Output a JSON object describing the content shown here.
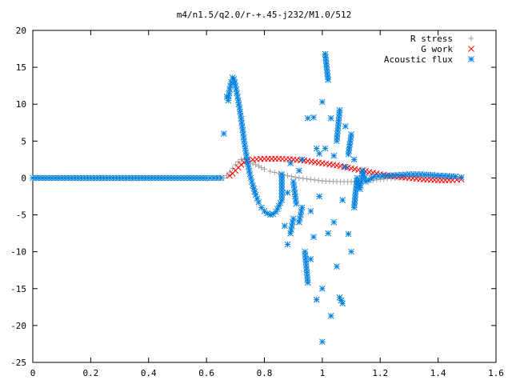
{
  "chart_data": {
    "type": "scatter",
    "title": "m4/n1.5/q2.0/r-+.45-j232/M1.0/512",
    "xlabel": "",
    "ylabel": "",
    "xlim": [
      0,
      1.6
    ],
    "ylim": [
      -25,
      20
    ],
    "x_ticks": [
      "0",
      "0.2",
      "0.4",
      "0.6",
      "0.8",
      "1",
      "1.2",
      "1.4",
      "1.6"
    ],
    "y_ticks": [
      "20",
      "15",
      "10",
      "5",
      "0",
      "-5",
      "-10",
      "-15",
      "-20",
      "-25"
    ],
    "grid": false,
    "legend_position": "top-right",
    "series": [
      {
        "name": "R stress",
        "color": "#a0a0a0",
        "marker": "plus",
        "points": [
          [
            0.0,
            0
          ],
          [
            0.1,
            0
          ],
          [
            0.2,
            0
          ],
          [
            0.3,
            0
          ],
          [
            0.4,
            0
          ],
          [
            0.5,
            0
          ],
          [
            0.6,
            0
          ],
          [
            0.66,
            0
          ],
          [
            0.67,
            0.3
          ],
          [
            0.68,
            0.8
          ],
          [
            0.69,
            1.3
          ],
          [
            0.7,
            1.8
          ],
          [
            0.71,
            2.2
          ],
          [
            0.72,
            2.5
          ],
          [
            0.73,
            2.6
          ],
          [
            0.74,
            2.5
          ],
          [
            0.75,
            2.3
          ],
          [
            0.76,
            2.0
          ],
          [
            0.78,
            1.6
          ],
          [
            0.8,
            1.2
          ],
          [
            0.82,
            0.9
          ],
          [
            0.85,
            0.6
          ],
          [
            0.88,
            0.3
          ],
          [
            0.92,
            0.0
          ],
          [
            0.96,
            -0.2
          ],
          [
            1.0,
            -0.4
          ],
          [
            1.05,
            -0.5
          ],
          [
            1.1,
            -0.5
          ],
          [
            1.15,
            -0.4
          ],
          [
            1.2,
            -0.2
          ],
          [
            1.25,
            0.0
          ],
          [
            1.3,
            0.2
          ],
          [
            1.35,
            0.3
          ],
          [
            1.4,
            0.3
          ],
          [
            1.45,
            0.2
          ],
          [
            1.48,
            0.1
          ]
        ]
      },
      {
        "name": "G work",
        "color": "#ff0000",
        "marker": "cross",
        "points": [
          [
            0.68,
            0.3
          ],
          [
            0.69,
            0.6
          ],
          [
            0.7,
            1.0
          ],
          [
            0.71,
            1.4
          ],
          [
            0.72,
            1.8
          ],
          [
            0.73,
            2.1
          ],
          [
            0.74,
            2.3
          ],
          [
            0.76,
            2.5
          ],
          [
            0.8,
            2.6
          ],
          [
            0.85,
            2.6
          ],
          [
            0.9,
            2.5
          ],
          [
            0.95,
            2.3
          ],
          [
            1.0,
            2.0
          ],
          [
            1.05,
            1.7
          ],
          [
            1.1,
            1.3
          ],
          [
            1.15,
            0.9
          ],
          [
            1.2,
            0.5
          ],
          [
            1.25,
            0.2
          ],
          [
            1.3,
            0.0
          ],
          [
            1.35,
            -0.2
          ],
          [
            1.4,
            -0.3
          ],
          [
            1.45,
            -0.3
          ],
          [
            1.48,
            -0.2
          ]
        ]
      },
      {
        "name": "Acoustic flux",
        "color": "#0080e0",
        "marker": "star",
        "points": [
          [
            0.0,
            0
          ],
          [
            0.1,
            0
          ],
          [
            0.2,
            0
          ],
          [
            0.3,
            0
          ],
          [
            0.4,
            0
          ],
          [
            0.5,
            0
          ],
          [
            0.6,
            0
          ],
          [
            0.65,
            0
          ],
          [
            0.66,
            6.0
          ],
          [
            0.67,
            11.0
          ],
          [
            0.675,
            10.5
          ],
          [
            0.68,
            12.0
          ],
          [
            0.685,
            13.0
          ],
          [
            0.69,
            13.6
          ],
          [
            0.695,
            13.4
          ],
          [
            0.7,
            12.5
          ],
          [
            0.71,
            10.5
          ],
          [
            0.72,
            8.0
          ],
          [
            0.73,
            5.0
          ],
          [
            0.74,
            2.5
          ],
          [
            0.75,
            0.5
          ],
          [
            0.76,
            -1.0
          ],
          [
            0.77,
            -2.3
          ],
          [
            0.78,
            -3.3
          ],
          [
            0.79,
            -4.0
          ],
          [
            0.8,
            -4.5
          ],
          [
            0.81,
            -4.8
          ],
          [
            0.82,
            -5.0
          ],
          [
            0.83,
            -4.9
          ],
          [
            0.84,
            -4.6
          ],
          [
            0.86,
            -3.0
          ],
          [
            0.86,
            0.5
          ],
          [
            0.87,
            -6.5
          ],
          [
            0.88,
            -2.0
          ],
          [
            0.88,
            -9.0
          ],
          [
            0.89,
            2.0
          ],
          [
            0.89,
            -7.5
          ],
          [
            0.9,
            -5.5
          ],
          [
            0.9,
            -0.5
          ],
          [
            0.91,
            -3.5
          ],
          [
            0.92,
            1.0
          ],
          [
            0.92,
            -6.0
          ],
          [
            0.93,
            -4.0
          ],
          [
            0.93,
            2.5
          ],
          [
            0.94,
            -10.0
          ],
          [
            0.95,
            -14.2
          ],
          [
            0.95,
            8.1
          ],
          [
            0.96,
            -11.0
          ],
          [
            0.96,
            -4.5
          ],
          [
            0.97,
            8.2
          ],
          [
            0.97,
            -8.0
          ],
          [
            0.98,
            -16.5
          ],
          [
            0.98,
            4.0
          ],
          [
            0.99,
            3.3
          ],
          [
            0.99,
            -2.5
          ],
          [
            1.0,
            10.3
          ],
          [
            1.0,
            -15.0
          ],
          [
            1.0,
            -22.2
          ],
          [
            1.01,
            4.0
          ],
          [
            1.01,
            16.8
          ],
          [
            1.02,
            13.3
          ],
          [
            1.02,
            -7.5
          ],
          [
            1.03,
            -18.7
          ],
          [
            1.03,
            8.1
          ],
          [
            1.04,
            -6.0
          ],
          [
            1.04,
            3.0
          ],
          [
            1.05,
            -12.0
          ],
          [
            1.05,
            5.0
          ],
          [
            1.06,
            9.2
          ],
          [
            1.06,
            -16.2
          ],
          [
            1.07,
            -17.0
          ],
          [
            1.07,
            -3.0
          ],
          [
            1.08,
            7.0
          ],
          [
            1.08,
            1.5
          ],
          [
            1.09,
            -7.6
          ],
          [
            1.09,
            3.2
          ],
          [
            1.1,
            5.9
          ],
          [
            1.1,
            -10.0
          ],
          [
            1.11,
            2.5
          ],
          [
            1.11,
            -4.0
          ],
          [
            1.12,
            0.0
          ],
          [
            1.13,
            -1.5
          ],
          [
            1.14,
            1.0
          ],
          [
            1.15,
            -0.5
          ],
          [
            1.18,
            0.2
          ],
          [
            1.22,
            0.3
          ],
          [
            1.26,
            0.4
          ],
          [
            1.3,
            0.5
          ],
          [
            1.34,
            0.5
          ],
          [
            1.38,
            0.4
          ],
          [
            1.42,
            0.3
          ],
          [
            1.46,
            0.2
          ],
          [
            1.48,
            0.1
          ]
        ]
      }
    ]
  }
}
